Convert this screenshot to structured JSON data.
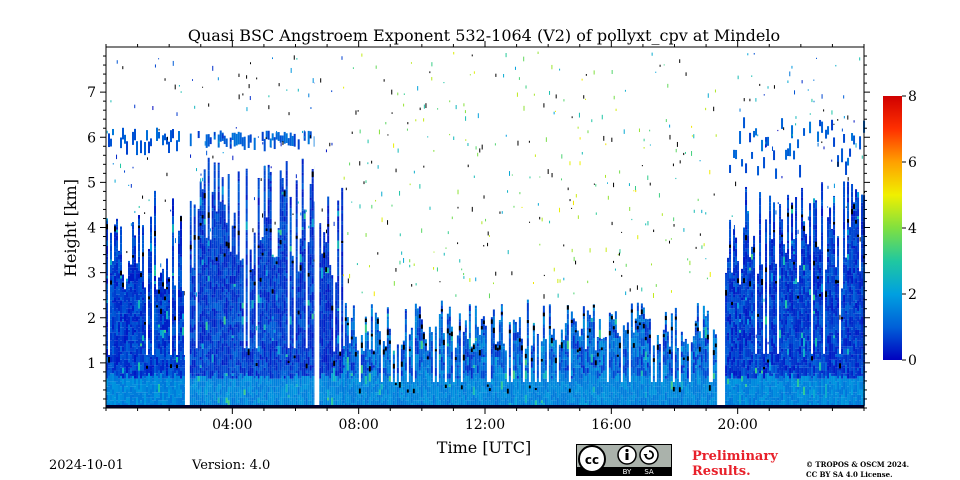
{
  "chart_data": {
    "type": "heatmap",
    "title": "Quasi BSC Angstroem Exponent 532-1064 (V2) of pollyxt_cpv at Mindelo",
    "xlabel": "Time [UTC]",
    "ylabel": "Height [km]",
    "xlim_hours": [
      0,
      24
    ],
    "ylim_km": [
      0,
      8
    ],
    "x_ticks": [
      {
        "hour": 4,
        "label": "04:00"
      },
      {
        "hour": 8,
        "label": "08:00"
      },
      {
        "hour": 12,
        "label": "12:00"
      },
      {
        "hour": 16,
        "label": "16:00"
      },
      {
        "hour": 20,
        "label": "20:00"
      }
    ],
    "y_ticks": [
      {
        "value": 1,
        "label": "1"
      },
      {
        "value": 2,
        "label": "2"
      },
      {
        "value": 3,
        "label": "3"
      },
      {
        "value": 4,
        "label": "4"
      },
      {
        "value": 5,
        "label": "5"
      },
      {
        "value": 6,
        "label": "6"
      },
      {
        "value": 7,
        "label": "7"
      }
    ],
    "colorbar": {
      "range": [
        0,
        8
      ],
      "ticks": [
        {
          "value": 0,
          "label": "0"
        },
        {
          "value": 2,
          "label": "2"
        },
        {
          "value": 4,
          "label": "4"
        },
        {
          "value": 6,
          "label": "6"
        },
        {
          "value": 8,
          "label": "8"
        }
      ],
      "colormap": [
        "#0000bf",
        "#0060d8",
        "#00a0e0",
        "#20c8a0",
        "#80e040",
        "#f0f000",
        "#ffa000",
        "#ff3000",
        "#d00000"
      ]
    },
    "data_gaps_hours": [
      [
        2.5,
        2.65
      ],
      [
        6.6,
        6.75
      ],
      [
        19.35,
        19.6
      ]
    ],
    "segments": [
      {
        "start_hour": 0.0,
        "end_hour": 2.5,
        "main_layer_top_km": 4.7,
        "upper_layer_km": [
          5.6,
          6.0
        ],
        "mean_value": 0.6
      },
      {
        "start_hour": 2.65,
        "end_hour": 6.6,
        "main_layer_top_km": 5.3,
        "upper_layer_km": [
          5.7,
          5.9
        ],
        "mean_value": 0.6
      },
      {
        "start_hour": 6.75,
        "end_hour": 7.5,
        "main_layer_top_km": 5.0,
        "upper_layer_km": null,
        "mean_value": 0.5
      },
      {
        "start_hour": 7.5,
        "end_hour": 19.35,
        "main_layer_top_km": 2.3,
        "upper_layer_km": null,
        "mean_value": 1.0,
        "free_troposphere_scatter_value": 4.0
      },
      {
        "start_hour": 19.6,
        "end_hour": 24.0,
        "main_layer_top_km": 4.8,
        "upper_layer_km": [
          5.0,
          6.2
        ],
        "mean_value": 0.6
      }
    ]
  },
  "footer": {
    "date": "2024-10-01",
    "version": "Version: 4.0",
    "preliminary_line1": "Preliminary",
    "preliminary_line2": "Results.",
    "copyright_line1": "© TROPOS & OSCM 2024.",
    "copyright_line2": "CC BY SA 4.0 License.",
    "license_by": "BY",
    "license_sa": "SA"
  }
}
